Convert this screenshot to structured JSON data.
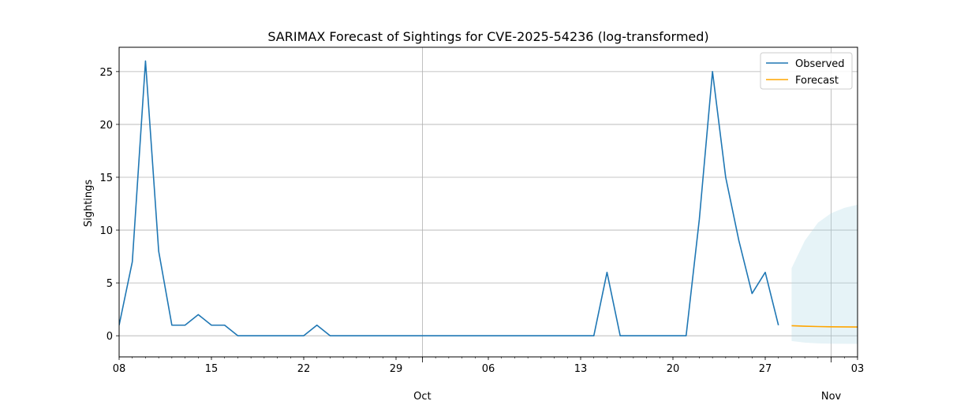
{
  "chart_data": {
    "type": "line",
    "title": "SARIMAX Forecast of Sightings for CVE-2025-54236 (log-transformed)",
    "xlabel": "",
    "ylabel": "Sightings",
    "xlim": [
      "2025-09-08",
      "2025-11-03"
    ],
    "ylim": [
      -2,
      27.3
    ],
    "grid": true,
    "legend_position": "top-right",
    "x_ticks_minor": [
      "08",
      "15",
      "22",
      "29",
      "06",
      "13",
      "20",
      "27",
      "03"
    ],
    "x_ticks_major": [
      "Oct",
      "Nov"
    ],
    "y_ticks": [
      0,
      5,
      10,
      15,
      20,
      25
    ],
    "series": [
      {
        "name": "Observed",
        "color": "#1f77b4",
        "x": [
          "2025-09-08",
          "2025-09-09",
          "2025-09-10",
          "2025-09-11",
          "2025-09-12",
          "2025-09-13",
          "2025-09-14",
          "2025-09-15",
          "2025-09-16",
          "2025-09-17",
          "2025-09-18",
          "2025-09-19",
          "2025-09-20",
          "2025-09-21",
          "2025-09-22",
          "2025-09-23",
          "2025-09-24",
          "2025-09-25",
          "2025-09-26",
          "2025-09-27",
          "2025-09-28",
          "2025-09-29",
          "2025-09-30",
          "2025-10-01",
          "2025-10-02",
          "2025-10-03",
          "2025-10-04",
          "2025-10-05",
          "2025-10-06",
          "2025-10-07",
          "2025-10-08",
          "2025-10-09",
          "2025-10-10",
          "2025-10-11",
          "2025-10-12",
          "2025-10-13",
          "2025-10-14",
          "2025-10-15",
          "2025-10-16",
          "2025-10-17",
          "2025-10-18",
          "2025-10-19",
          "2025-10-20",
          "2025-10-21",
          "2025-10-22",
          "2025-10-23",
          "2025-10-24",
          "2025-10-25",
          "2025-10-26",
          "2025-10-27",
          "2025-10-28"
        ],
        "values": [
          1,
          7,
          26,
          8,
          1,
          1,
          2,
          1,
          1,
          0,
          0,
          0,
          0,
          0,
          0,
          1,
          0,
          0,
          0,
          0,
          0,
          0,
          0,
          0,
          0,
          0,
          0,
          0,
          0,
          0,
          0,
          0,
          0,
          0,
          0,
          0,
          0,
          6,
          0,
          0,
          0,
          0,
          0,
          0,
          11,
          25,
          15,
          9,
          4,
          6,
          1
        ]
      },
      {
        "name": "Forecast",
        "color": "#ffa500",
        "x": [
          "2025-10-29",
          "2025-10-30",
          "2025-10-31",
          "2025-11-01",
          "2025-11-02",
          "2025-11-03",
          "2025-11-04"
        ],
        "values": [
          0.95,
          0.9,
          0.87,
          0.85,
          0.84,
          0.83,
          0.82
        ],
        "lower": [
          -0.5,
          -0.65,
          -0.72,
          -0.75,
          -0.76,
          -0.77,
          -0.77
        ],
        "upper": [
          6.4,
          9.0,
          10.7,
          11.6,
          12.1,
          12.4,
          12.6
        ],
        "band_color": "#add8e6"
      }
    ]
  }
}
